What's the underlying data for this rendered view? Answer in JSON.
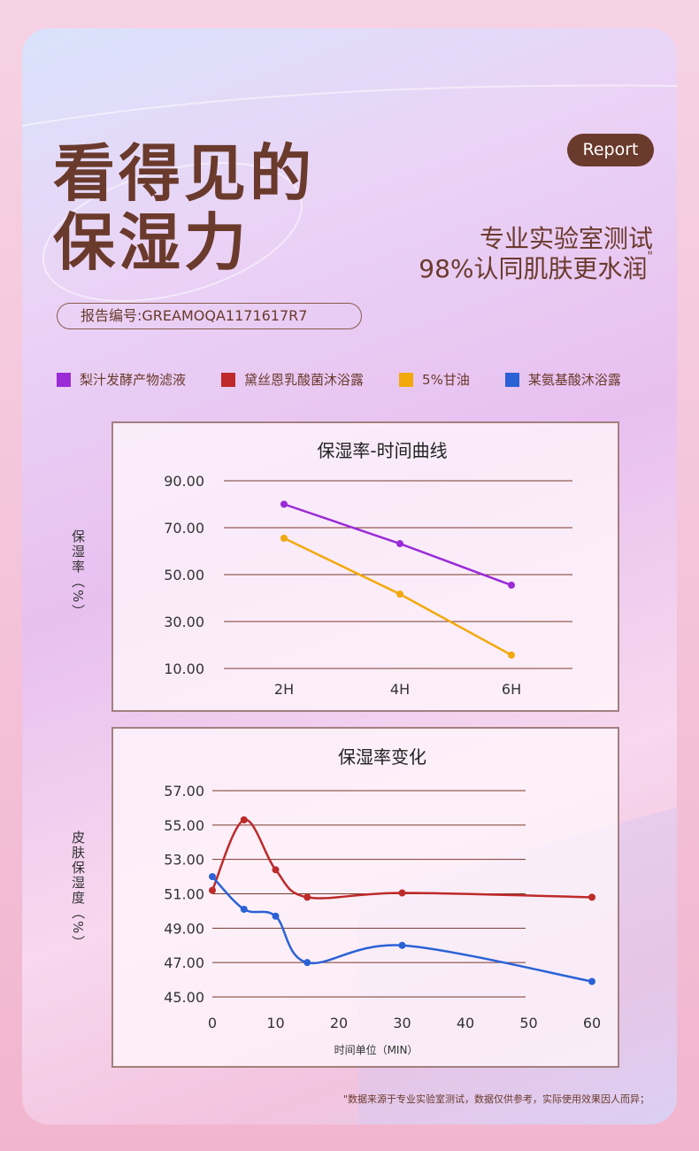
{
  "header": {
    "title_line1": "看得见的",
    "title_line2": "保湿力",
    "badge": "Report",
    "sub_line1": "专业实验室测试",
    "sub_line2": "98%认同肌肤更水润",
    "sub_mark": "\"",
    "report_code": "报告编号:GREAMOQA1171617R7"
  },
  "legend": [
    {
      "label": "梨汁发酵产物滤液",
      "color": "#9b2bd6"
    },
    {
      "label": "黛丝恩乳酸菌沐浴露",
      "color": "#be2a2a"
    },
    {
      "label": "5%甘油",
      "color": "#f2a90c"
    },
    {
      "label": "某氨基酸沐浴露",
      "color": "#2a62d6"
    }
  ],
  "footnote": "\"数据来源于专业实验室测试，数据仅供参考，实际使用效果因人而异；",
  "chart_data": [
    {
      "type": "line",
      "title": "保湿率-时间曲线",
      "ylabel": "保湿率（%）",
      "xlabel": "",
      "categories": [
        "2H",
        "4H",
        "6H"
      ],
      "ylim": [
        10,
        90
      ],
      "yticks": [
        "90.00",
        "70.00",
        "50.00",
        "30.00",
        "10.00"
      ],
      "series": [
        {
          "name": "梨汁发酵产物滤液",
          "color": "#9b2bd6",
          "values": [
            80,
            63.2,
            45.5
          ]
        },
        {
          "name": "5%甘油",
          "color": "#f2a90c",
          "values": [
            65.5,
            41.7,
            15.7
          ]
        }
      ]
    },
    {
      "type": "line",
      "title": "保湿率变化",
      "ylabel": "皮肤保湿度（%）",
      "xlabel": "时间单位（MIN）",
      "xticks": [
        "0",
        "10",
        "20",
        "30",
        "40",
        "50",
        "60"
      ],
      "xlim": [
        0,
        60
      ],
      "ylim": [
        45,
        57
      ],
      "yticks": [
        "57.00",
        "55.00",
        "53.00",
        "51.00",
        "49.00",
        "47.00",
        "45.00"
      ],
      "series": [
        {
          "name": "黛丝恩乳酸菌沐浴露",
          "color": "#be2a2a",
          "x": [
            0,
            5,
            10,
            15,
            30,
            60
          ],
          "values": [
            51.2,
            55.3,
            52.4,
            50.8,
            51.05,
            50.8
          ]
        },
        {
          "name": "某氨基酸沐浴露",
          "color": "#2a62d6",
          "x": [
            0,
            5,
            10,
            15,
            30,
            60
          ],
          "values": [
            52,
            50.1,
            49.7,
            47,
            48,
            45.9
          ]
        }
      ]
    }
  ]
}
